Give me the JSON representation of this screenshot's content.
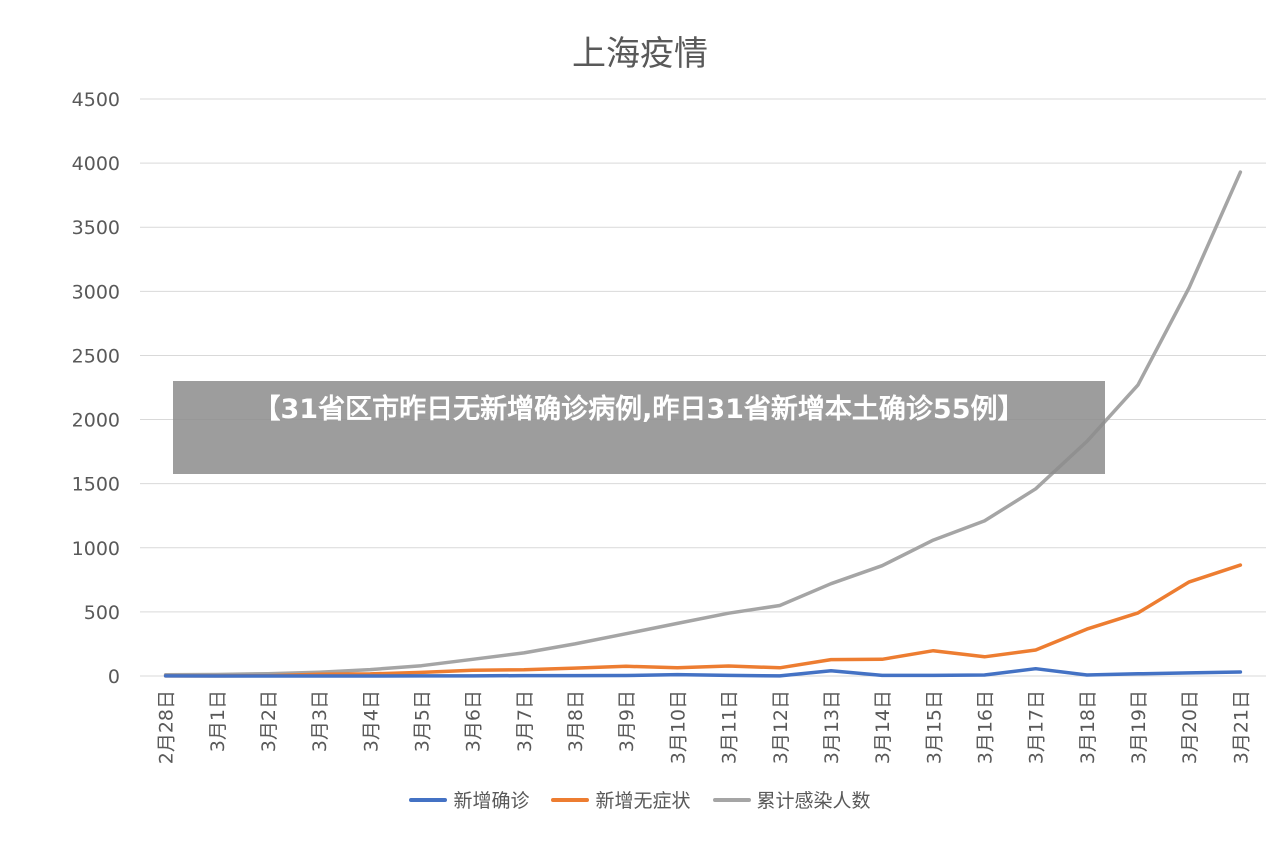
{
  "chart_data": {
    "type": "line",
    "title": "上海疫情",
    "xlabel": "",
    "ylabel": "",
    "ylim": [
      0,
      4500
    ],
    "yticks": [
      0,
      500,
      1000,
      1500,
      2000,
      2500,
      3000,
      3500,
      4000,
      4500
    ],
    "grid": true,
    "legend_position": "bottom",
    "categories": [
      "2月28日",
      "3月1日",
      "3月2日",
      "3月3日",
      "3月4日",
      "3月5日",
      "3月6日",
      "3月7日",
      "3月8日",
      "3月9日",
      "3月10日",
      "3月11日",
      "3月12日",
      "3月13日",
      "3月14日",
      "3月15日",
      "3月16日",
      "3月17日",
      "3月18日",
      "3月19日",
      "3月20日",
      "3月21日"
    ],
    "series": [
      {
        "name": "新增确诊",
        "color": "#4472C4",
        "values": [
          1,
          0,
          0,
          0,
          0,
          1,
          1,
          3,
          3,
          4,
          11,
          5,
          1,
          41,
          5,
          5,
          8,
          57,
          8,
          17,
          24,
          31
        ]
      },
      {
        "name": "新增无症状",
        "color": "#ED7D31",
        "values": [
          1,
          1,
          2,
          14,
          16,
          28,
          45,
          48,
          62,
          76,
          64,
          78,
          64,
          128,
          130,
          197,
          150,
          203,
          366,
          492,
          734,
          865
        ]
      },
      {
        "name": "累计感染人数",
        "color": "#A5A5A5",
        "values": [
          10,
          12,
          18,
          30,
          50,
          80,
          130,
          180,
          250,
          330,
          410,
          490,
          550,
          720,
          860,
          1060,
          1210,
          1460,
          1830,
          2270,
          3030,
          3930
        ]
      }
    ]
  },
  "overlay": {
    "text": "【31省区市昨日无新增确诊病例,昨日31省新增本土确诊55例】"
  }
}
